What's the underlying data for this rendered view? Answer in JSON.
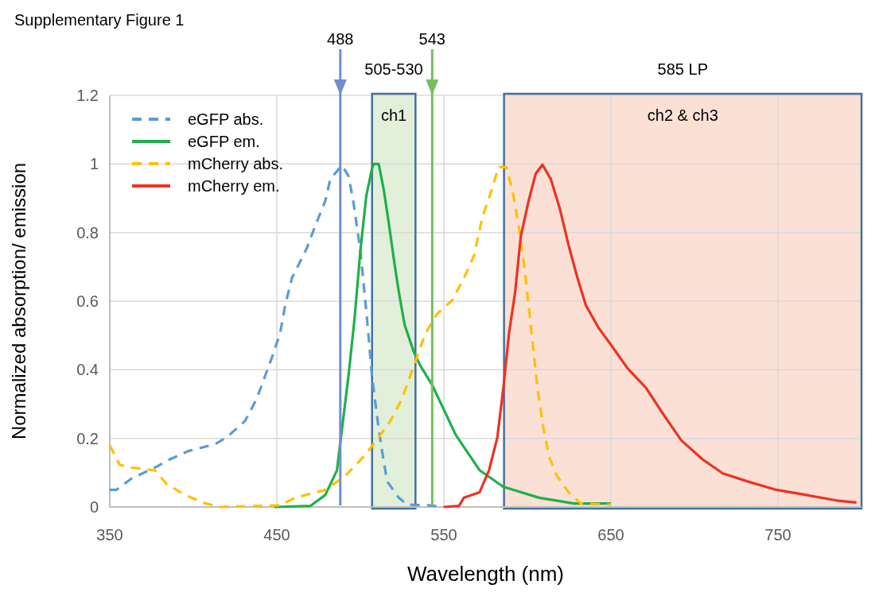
{
  "chart_data": {
    "type": "line",
    "title": "Supplementary Figure 1",
    "xlabel": "Wavelength (nm)",
    "ylabel": "Normalized absorption/ emission",
    "xlim": [
      350,
      800
    ],
    "xticks": [
      350,
      450,
      550,
      650,
      750
    ],
    "ylim": [
      0,
      1.2
    ],
    "yticks": [
      {
        "value": 0,
        "label": "0"
      },
      {
        "value": 0.2,
        "label": "0.2"
      },
      {
        "value": 0.4,
        "label": "0.4"
      },
      {
        "value": 0.6,
        "label": "0.6"
      },
      {
        "value": 0.8,
        "label": "0.8"
      },
      {
        "value": 1,
        "label": "1"
      },
      {
        "value": 1.2,
        "label": "1.2"
      }
    ],
    "grid": true,
    "legend": "top left",
    "marker": "none",
    "series": [
      {
        "name": "eGFP abs.",
        "color": "#5b9bd5",
        "line_style": "dashed",
        "x": [
          350,
          354,
          363,
          377,
          386,
          397,
          413,
          420,
          431,
          438,
          447,
          452,
          455,
          459,
          468,
          473,
          479,
          482,
          489,
          493,
          496,
          500,
          504,
          507,
          511,
          513,
          516,
          523,
          528,
          541,
          550
        ],
        "values": [
          0.05,
          0.05,
          0.083,
          0.115,
          0.139,
          0.163,
          0.183,
          0.203,
          0.251,
          0.316,
          0.435,
          0.507,
          0.588,
          0.667,
          0.755,
          0.82,
          0.892,
          0.956,
          0.996,
          0.964,
          0.884,
          0.747,
          0.548,
          0.379,
          0.227,
          0.163,
          0.075,
          0.027,
          0.007,
          0.005,
          0
        ]
      },
      {
        "name": "eGFP em.",
        "color": "#1fb04b",
        "line_style": "solid",
        "x": [
          448.5,
          470,
          479,
          486,
          489,
          493,
          496.5,
          500,
          503.6,
          507,
          508,
          511,
          514,
          517,
          520.5,
          523,
          526.5,
          532,
          536,
          543,
          557,
          571.4,
          585.5,
          607,
          628,
          650
        ],
        "values": [
          0,
          0.003,
          0.035,
          0.107,
          0.227,
          0.387,
          0.548,
          0.747,
          0.908,
          0.987,
          1,
          1,
          0.925,
          0.828,
          0.707,
          0.628,
          0.531,
          0.452,
          0.411,
          0.356,
          0.211,
          0.107,
          0.059,
          0.027,
          0.01,
          0.01
        ]
      },
      {
        "name": "mCherry abs.",
        "color": "#ffc000",
        "line_style": "dashed",
        "x": [
          350,
          356,
          363,
          377,
          384,
          395,
          407.6,
          416.5,
          452,
          461,
          479,
          491,
          502,
          511,
          518,
          525,
          532,
          539,
          546,
          555,
          562,
          568,
          573,
          578.6,
          582.8,
          587.4,
          591,
          594.5,
          598,
          600.7,
          603.4,
          606,
          609.7,
          613,
          617.6,
          624.6,
          632,
          650
        ],
        "values": [
          0.18,
          0.123,
          0.115,
          0.107,
          0.067,
          0.035,
          0.01,
          0,
          0.005,
          0.027,
          0.05,
          0.091,
          0.147,
          0.203,
          0.251,
          0.316,
          0.411,
          0.507,
          0.563,
          0.603,
          0.667,
          0.732,
          0.844,
          0.924,
          0.992,
          0.99,
          0.924,
          0.828,
          0.707,
          0.588,
          0.467,
          0.347,
          0.227,
          0.147,
          0.091,
          0.043,
          0.01,
          0.007
        ]
      },
      {
        "name": "mCherry em.",
        "color": "#ee3124",
        "line_style": "solid",
        "x": [
          550,
          559,
          562,
          571.4,
          577,
          582,
          585.6,
          589,
          592.7,
          596,
          600.7,
          605,
          609,
          614,
          619.5,
          624.6,
          630,
          635,
          642.5,
          649.7,
          660,
          671,
          681.7,
          692,
          704.8,
          717,
          731.5,
          749,
          767,
          785,
          797
        ],
        "values": [
          0,
          0.003,
          0.027,
          0.043,
          0.107,
          0.203,
          0.347,
          0.507,
          0.628,
          0.788,
          0.892,
          0.972,
          0.998,
          0.956,
          0.868,
          0.764,
          0.667,
          0.588,
          0.523,
          0.475,
          0.404,
          0.347,
          0.268,
          0.195,
          0.139,
          0.098,
          0.075,
          0.05,
          0.035,
          0.019,
          0.013
        ]
      }
    ],
    "bands": [
      {
        "axis": "x",
        "from": 507,
        "to": 533,
        "label": "ch1",
        "color": "#e2efda"
      },
      {
        "axis": "x",
        "from": 586,
        "to": 800,
        "label": "ch2 & ch3",
        "color": "#fbe0d5"
      }
    ],
    "ref_lines": [
      {
        "axis": "x",
        "value": 488,
        "label": "488",
        "color": "#6f8fcc"
      },
      {
        "axis": "x",
        "value": 543,
        "label": "543",
        "color": "#77bf5c"
      }
    ],
    "annotations": [
      "505-530",
      "585 LP"
    ]
  }
}
